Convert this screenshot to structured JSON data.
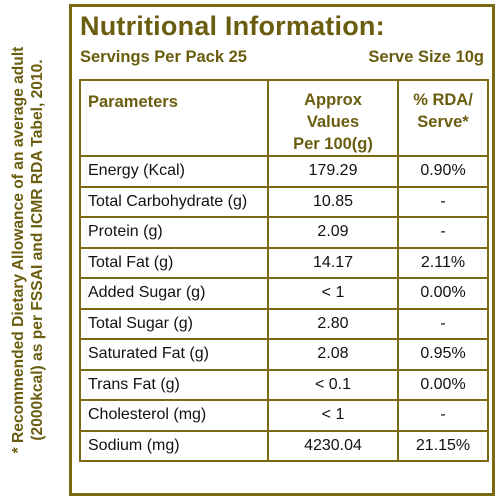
{
  "footnote": {
    "line1": "* Recommended Dietary Allowance of an average adult",
    "line2": "(2000kcal) as per FSSAI and ICMR RDA Tabel, 2010."
  },
  "title": "Nutritional Information:",
  "servings_per_pack": "Servings Per Pack 25",
  "serve_size": "Serve Size 10g",
  "table": {
    "headers": {
      "parameters": "Parameters",
      "values_line1": "Approx Values",
      "values_line2": "Per 100(g)",
      "rda_line1": "% RDA/",
      "rda_line2": "Serve*"
    },
    "rows": [
      {
        "param": "Energy (Kcal)",
        "value": "179.29",
        "rda": "0.90%"
      },
      {
        "param": "Total Carbohydrate (g)",
        "value": "10.85",
        "rda": "-"
      },
      {
        "param": "Protein (g)",
        "value": "2.09",
        "rda": "-"
      },
      {
        "param": "Total Fat (g)",
        "value": "14.17",
        "rda": "2.11%"
      },
      {
        "param": "Added Sugar (g)",
        "value": "< 1",
        "rda": "0.00%"
      },
      {
        "param": "Total Sugar (g)",
        "value": "2.80",
        "rda": "-"
      },
      {
        "param": "Saturated Fat (g)",
        "value": "2.08",
        "rda": "0.95%"
      },
      {
        "param": "Trans Fat (g)",
        "value": "< 0.1",
        "rda": "0.00%"
      },
      {
        "param": "Cholesterol (mg)",
        "value": "< 1",
        "rda": "-"
      },
      {
        "param": "Sodium (mg)",
        "value": "4230.04",
        "rda": "21.15%"
      }
    ]
  },
  "colors": {
    "accent": "#6b5d0f",
    "border": "#7a6a14",
    "text": "#111111"
  }
}
